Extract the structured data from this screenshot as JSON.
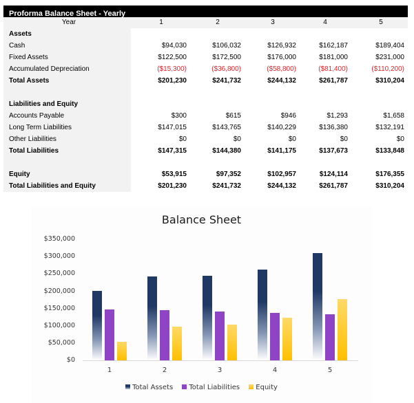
{
  "table": {
    "title": "Proforma Balance Sheet - Yearly",
    "year_label": "Year",
    "years": [
      "1",
      "2",
      "3",
      "4",
      "5"
    ],
    "sections": {
      "assets_header": "Assets",
      "liabilities_header": "Liabilities and Equity"
    },
    "rows": {
      "cash": {
        "label": "Cash",
        "values": [
          "$94,030",
          "$106,032",
          "$126,932",
          "$162,187",
          "$189,404"
        ]
      },
      "fixed_assets": {
        "label": "Fixed Assets",
        "values": [
          "$122,500",
          "$172,500",
          "$176,000",
          "$181,000",
          "$231,000"
        ]
      },
      "accum_dep": {
        "label": "Accumulated Depreciation",
        "values": [
          "($15,300)",
          "($36,800)",
          "($58,800)",
          "($81,400)",
          "($110,200)"
        ]
      },
      "total_assets": {
        "label": "Total Assets",
        "values": [
          "$201,230",
          "$241,732",
          "$244,132",
          "$261,787",
          "$310,204"
        ]
      },
      "accounts_payable": {
        "label": "Accounts Payable",
        "values": [
          "$300",
          "$615",
          "$946",
          "$1,293",
          "$1,658"
        ]
      },
      "long_term": {
        "label": "Long Term Liabilities",
        "values": [
          "$147,015",
          "$143,765",
          "$140,229",
          "$136,380",
          "$132,191"
        ]
      },
      "other": {
        "label": "Other Liabilities",
        "values": [
          "$0",
          "$0",
          "$0",
          "$0",
          "$0"
        ]
      },
      "total_liabilities": {
        "label": "Total Liabilities",
        "values": [
          "$147,315",
          "$144,380",
          "$141,175",
          "$137,673",
          "$133,848"
        ]
      },
      "equity": {
        "label": "Equity",
        "values": [
          "$53,915",
          "$97,352",
          "$102,957",
          "$124,114",
          "$176,355"
        ]
      },
      "total_le": {
        "label": "Total Liabilities and Equity",
        "values": [
          "$201,230",
          "$241,732",
          "$244,132",
          "$261,787",
          "$310,204"
        ]
      }
    },
    "colors": {
      "negative": "#e0242b",
      "header_bg": "#000000",
      "label_bg": "#f2f2f2"
    }
  },
  "chart_data": {
    "type": "bar",
    "title": "Balance Sheet",
    "categories": [
      "1",
      "2",
      "3",
      "4",
      "5"
    ],
    "series": [
      {
        "name": "Total Assets",
        "values": [
          201230,
          241732,
          244132,
          261787,
          310204
        ],
        "color": "#1f3864"
      },
      {
        "name": "Total Liabilities",
        "values": [
          147315,
          144380,
          141175,
          137673,
          133848
        ],
        "color": "#8e44c4"
      },
      {
        "name": "Equity",
        "values": [
          53915,
          97352,
          102957,
          124114,
          176355
        ],
        "color": "#ffc000"
      }
    ],
    "xlabel": "",
    "ylabel": "",
    "ylim": [
      0,
      350000
    ],
    "yticks": [
      "$350,000",
      "$300,000",
      "$250,000",
      "$200,000",
      "$150,000",
      "$100,000",
      "$50,000",
      "$0"
    ],
    "grid": false,
    "legend_position": "bottom"
  }
}
